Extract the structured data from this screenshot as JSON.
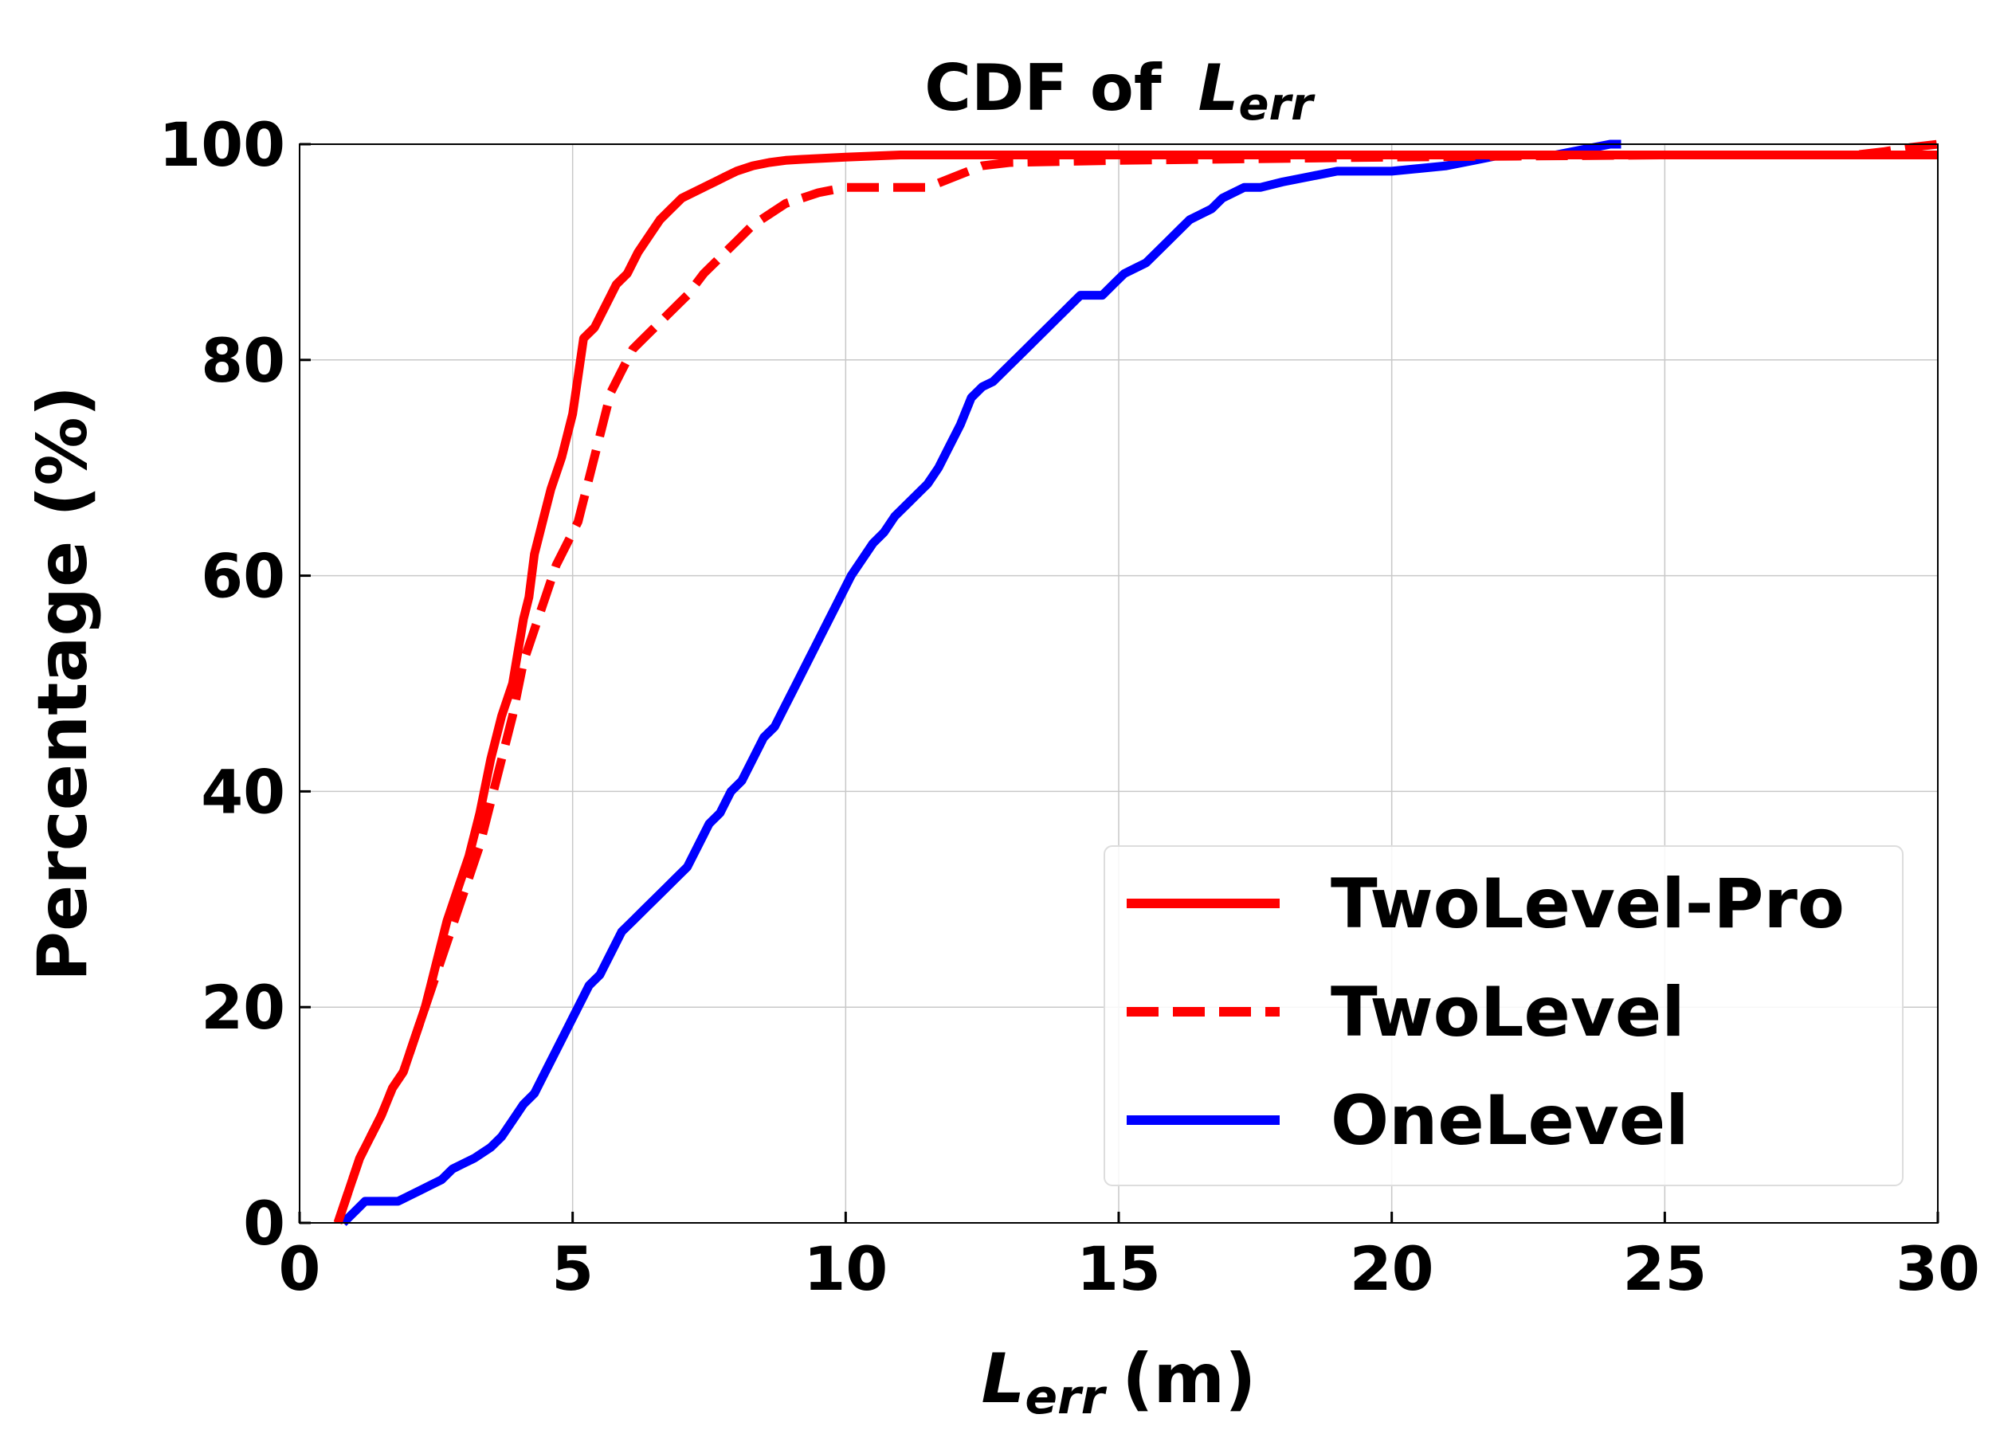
{
  "chart_data": {
    "type": "line",
    "title": "CDF of",
    "title_var": "L",
    "title_sub": "err",
    "xlabel_var": "L",
    "xlabel_sub": "err",
    "xlabel_unit": "(m)",
    "ylabel": "Percentage (%)",
    "xlim": [
      0,
      30
    ],
    "ylim": [
      0,
      100
    ],
    "xticks": [
      0,
      5,
      10,
      15,
      20,
      25,
      30
    ],
    "yticks": [
      0,
      20,
      40,
      60,
      80,
      100
    ],
    "grid": true,
    "legend_position": "bottom-right",
    "series": [
      {
        "name": "TwoLevel-Pro",
        "color": "#ff0000",
        "dash": "solid",
        "x": [
          0.7,
          0.9,
          1.1,
          1.3,
          1.5,
          1.7,
          1.9,
          2.1,
          2.3,
          2.4,
          2.5,
          2.7,
          2.9,
          3.1,
          3.3,
          3.5,
          3.7,
          3.9,
          4.1,
          4.2,
          4.3,
          4.5,
          4.6,
          4.8,
          5.0,
          5.2,
          5.4,
          5.6,
          5.8,
          6.0,
          6.2,
          6.4,
          6.6,
          6.8,
          7.0,
          7.2,
          7.4,
          7.6,
          7.8,
          8.0,
          8.3,
          8.6,
          8.9,
          9.2,
          9.6,
          10.0,
          10.5,
          11.0,
          12.0,
          15.0,
          20.0,
          25.0,
          30.0
        ],
        "y": [
          0,
          3,
          6,
          8,
          10,
          12.5,
          14,
          17,
          20,
          22,
          24,
          28,
          31,
          34,
          38,
          43,
          47,
          50,
          56,
          58,
          62,
          66,
          68,
          71,
          75,
          82,
          83,
          85,
          87,
          88,
          90,
          91.5,
          93,
          94,
          95,
          95.5,
          96,
          96.5,
          97,
          97.5,
          98,
          98.3,
          98.5,
          98.6,
          98.7,
          98.8,
          98.9,
          99,
          99,
          99,
          99,
          99,
          99
        ]
      },
      {
        "name": "TwoLevel",
        "color": "#ff0000",
        "dash": "dashed",
        "x": [
          0.7,
          0.9,
          1.1,
          1.3,
          1.5,
          1.7,
          1.9,
          2.1,
          2.3,
          2.5,
          2.7,
          2.9,
          3.1,
          3.3,
          3.5,
          3.7,
          3.9,
          4.1,
          4.3,
          4.5,
          4.7,
          4.9,
          5.1,
          5.3,
          5.5,
          5.7,
          5.9,
          6.1,
          6.3,
          6.5,
          6.7,
          6.9,
          7.1,
          7.4,
          7.7,
          8.0,
          8.3,
          8.6,
          8.9,
          9.2,
          9.5,
          10.0,
          11.0,
          11.5,
          12.0,
          12.5,
          13.0,
          15.0,
          20.0,
          25.0,
          28.5,
          29.0,
          29.5,
          30.0
        ],
        "y": [
          0,
          3,
          6,
          8,
          10,
          12.5,
          14,
          17,
          20,
          23,
          26,
          29,
          32,
          35,
          39,
          43,
          47,
          52,
          55,
          58,
          61,
          63,
          65,
          69,
          73,
          77,
          79,
          81,
          82,
          83,
          84,
          85,
          86,
          88,
          89.5,
          91,
          92.5,
          93.5,
          94.5,
          95,
          95.5,
          96,
          96,
          96,
          97,
          98,
          98.3,
          98.5,
          98.8,
          99,
          99,
          99.3,
          99.7,
          100
        ]
      },
      {
        "name": "OneLevel",
        "color": "#0000ff",
        "dash": "solid",
        "x": [
          0.8,
          1.0,
          1.2,
          1.5,
          1.8,
          2.0,
          2.2,
          2.4,
          2.6,
          2.8,
          3.0,
          3.2,
          3.5,
          3.7,
          3.9,
          4.1,
          4.3,
          4.5,
          4.7,
          4.9,
          5.1,
          5.3,
          5.5,
          5.7,
          5.9,
          6.1,
          6.3,
          6.5,
          6.7,
          6.9,
          7.1,
          7.3,
          7.5,
          7.7,
          7.9,
          8.1,
          8.3,
          8.5,
          8.7,
          8.9,
          9.1,
          9.3,
          9.5,
          9.7,
          9.9,
          10.1,
          10.3,
          10.5,
          10.7,
          10.9,
          11.1,
          11.3,
          11.5,
          11.7,
          11.9,
          12.1,
          12.3,
          12.5,
          12.7,
          12.9,
          13.1,
          13.3,
          13.5,
          13.7,
          13.9,
          14.1,
          14.3,
          14.5,
          14.7,
          14.9,
          15.1,
          15.3,
          15.5,
          15.7,
          15.9,
          16.1,
          16.3,
          16.5,
          16.7,
          16.9,
          17.1,
          17.3,
          17.6,
          18.0,
          18.5,
          19.0,
          20.0,
          21.0,
          21.5,
          22.0,
          23.0,
          23.5,
          24.0,
          24.2
        ],
        "y": [
          0,
          1,
          2,
          2,
          2,
          2.5,
          3,
          3.5,
          4,
          5,
          5.5,
          6,
          7,
          8,
          9.5,
          11,
          12,
          14,
          16,
          18,
          20,
          22,
          23,
          25,
          27,
          28,
          29,
          30,
          31,
          32,
          33,
          35,
          37,
          38,
          40,
          41,
          43,
          45,
          46,
          48,
          50,
          52,
          54,
          56,
          58,
          60,
          61.5,
          63,
          64,
          65.5,
          66.5,
          67.5,
          68.5,
          70,
          72,
          74,
          76.5,
          77.5,
          78,
          79,
          80,
          81,
          82,
          83,
          84,
          85,
          86,
          86,
          86,
          87,
          88,
          88.5,
          89,
          90,
          91,
          92,
          93,
          93.5,
          94,
          95,
          95.5,
          96,
          96,
          96.5,
          97,
          97.5,
          97.5,
          98,
          98.5,
          99,
          99,
          99.5,
          100,
          100
        ]
      }
    ]
  }
}
